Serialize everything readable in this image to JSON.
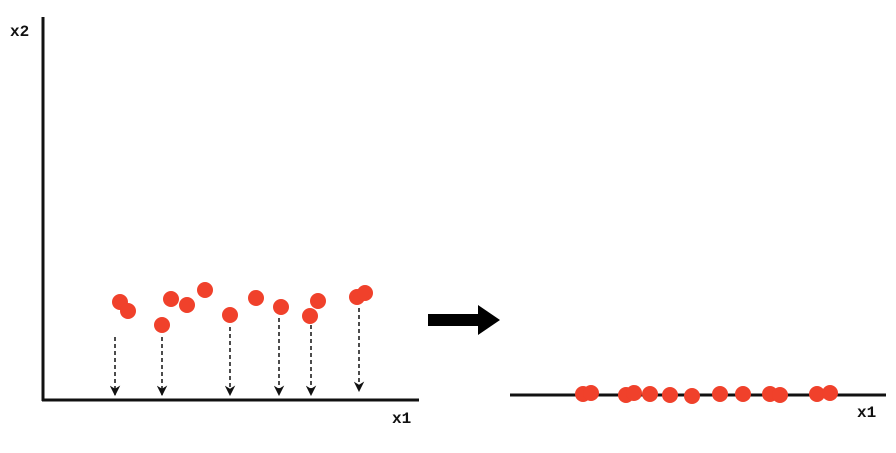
{
  "left_panel": {
    "y_axis_label": "x2",
    "x_axis_label": "x1"
  },
  "right_panel": {
    "x_axis_label": "x1"
  }
}
